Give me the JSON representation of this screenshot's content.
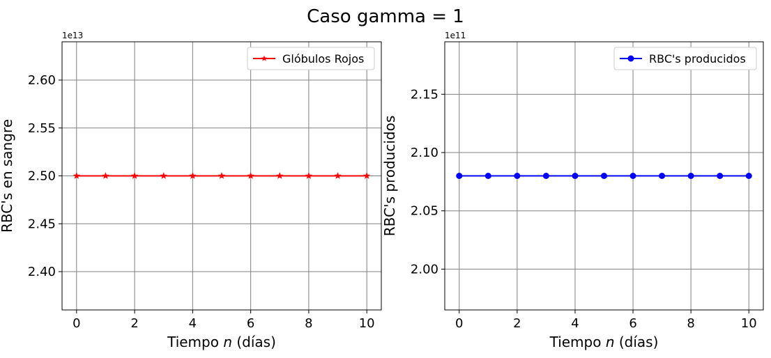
{
  "figure": {
    "suptitle": "Caso gamma = 1"
  },
  "colors": {
    "red_series": "#ff0000",
    "blue_series": "#0000ff",
    "grid": "#808080",
    "legend_border": "#cccccc"
  },
  "chart_data": [
    {
      "type": "line",
      "xlabel": "Tiempo $n$ (días)",
      "xlabel_parts": [
        "Tiempo ",
        "n",
        " (días)"
      ],
      "ylabel": "RBC's en sangre",
      "y_offset_label": "1e13",
      "xlim": [
        -0.5,
        10.5
      ],
      "ylim": [
        2.36,
        2.64
      ],
      "xticks": [
        0,
        2,
        4,
        6,
        8,
        10
      ],
      "xtick_labels": [
        "0",
        "2",
        "4",
        "6",
        "8",
        "10"
      ],
      "yticks": [
        2.4,
        2.45,
        2.5,
        2.55,
        2.6
      ],
      "ytick_labels": [
        "2.40",
        "2.45",
        "2.50",
        "2.55",
        "2.60"
      ],
      "grid": true,
      "legend_position": "upper right",
      "series": [
        {
          "name": "Glóbulos Rojos",
          "color": "#ff0000",
          "marker": "star",
          "x": [
            0,
            1,
            2,
            3,
            4,
            5,
            6,
            7,
            8,
            9,
            10
          ],
          "values": [
            2.5,
            2.5,
            2.5,
            2.5,
            2.5,
            2.5,
            2.5,
            2.5,
            2.5,
            2.5,
            2.5
          ]
        }
      ]
    },
    {
      "type": "line",
      "xlabel": "Tiempo $n$ (días)",
      "xlabel_parts": [
        "Tiempo ",
        "n",
        " (días)"
      ],
      "ylabel": "RBC's producidos",
      "y_offset_label": "1e11",
      "xlim": [
        -0.5,
        10.5
      ],
      "ylim": [
        1.965,
        2.195
      ],
      "xticks": [
        0,
        2,
        4,
        6,
        8,
        10
      ],
      "xtick_labels": [
        "0",
        "2",
        "4",
        "6",
        "8",
        "10"
      ],
      "yticks": [
        2.0,
        2.05,
        2.1,
        2.15
      ],
      "ytick_labels": [
        "2.00",
        "2.05",
        "2.10",
        "2.15"
      ],
      "grid": true,
      "legend_position": "upper right",
      "series": [
        {
          "name": "RBC's producidos",
          "color": "#0000ff",
          "marker": "circle",
          "x": [
            0,
            1,
            2,
            3,
            4,
            5,
            6,
            7,
            8,
            9,
            10
          ],
          "values": [
            2.08,
            2.08,
            2.08,
            2.08,
            2.08,
            2.08,
            2.08,
            2.08,
            2.08,
            2.08,
            2.08
          ]
        }
      ]
    }
  ]
}
